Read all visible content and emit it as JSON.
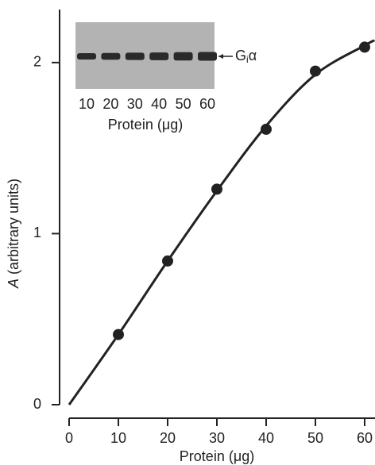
{
  "chart_data": {
    "type": "scatter",
    "xlabel": "Protein (μg)",
    "ylabel_parts": [
      "A",
      " (arbitrary units)"
    ],
    "x": [
      10,
      20,
      30,
      40,
      50,
      60
    ],
    "values": [
      0.41,
      0.84,
      1.26,
      1.61,
      1.95,
      2.09
    ],
    "color": "#222222",
    "fit": {
      "x": [
        0,
        10,
        20,
        30,
        40,
        50,
        60,
        62
      ],
      "values": [
        0,
        0.41,
        0.84,
        1.25,
        1.63,
        1.93,
        2.1,
        2.13
      ]
    },
    "xlim": [
      0,
      62.1
    ],
    "ylim": [
      0,
      2.31
    ],
    "xticks": [
      0,
      10,
      20,
      30,
      40,
      50,
      60
    ],
    "yticks": [
      0,
      1,
      2
    ],
    "inset": {
      "categories": [
        "10",
        "20",
        "30",
        "40",
        "50",
        "60"
      ],
      "xlabel": "Protein (μg)",
      "band_label_parts": [
        "G",
        "i",
        "α"
      ]
    }
  }
}
